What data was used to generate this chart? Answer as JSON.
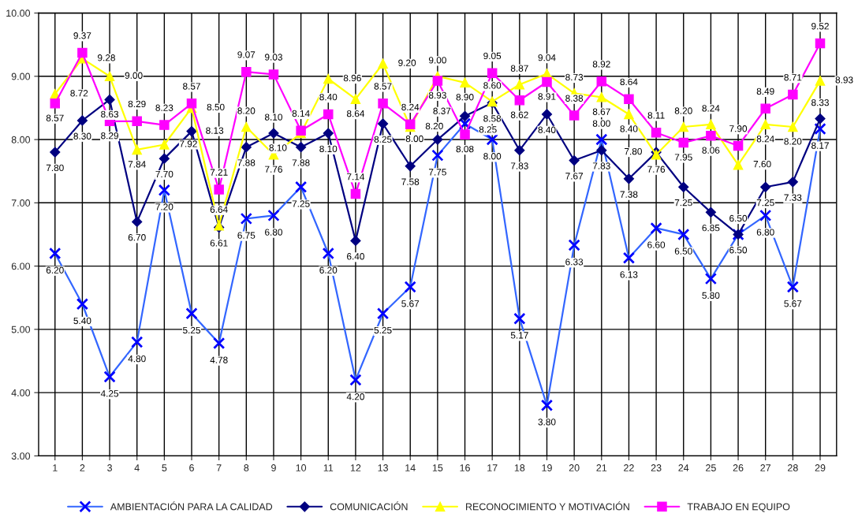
{
  "chart_data": {
    "type": "line",
    "categories": [
      "1",
      "2",
      "3",
      "4",
      "5",
      "6",
      "7",
      "8",
      "9",
      "10",
      "11",
      "12",
      "13",
      "14",
      "15",
      "16",
      "17",
      "18",
      "19",
      "20",
      "21",
      "22",
      "23",
      "24",
      "25",
      "26",
      "27",
      "28",
      "29"
    ],
    "series": [
      {
        "name": "AMBIENTACIÓN PARA LA CALIDAD",
        "color": "#3366ff",
        "marker": "cross",
        "values": [
          6.2,
          5.4,
          4.25,
          4.8,
          7.2,
          5.25,
          4.78,
          6.75,
          6.8,
          7.25,
          6.2,
          4.2,
          5.25,
          5.67,
          7.75,
          8.25,
          8.0,
          5.17,
          3.8,
          6.33,
          8.0,
          6.13,
          6.6,
          6.5,
          5.8,
          6.5,
          6.8,
          5.67,
          8.17
        ],
        "value_labels": [
          "6.20",
          "5.40",
          "4.25",
          "4.80",
          "7.20",
          "5.25",
          "4.78",
          "6.75",
          "6.80",
          "7.25",
          "6.20",
          "4.20",
          "5.25",
          "5.67",
          "7.75",
          "8.25",
          "8.00",
          "5.17",
          "3.80",
          "6.33",
          "8.00",
          "6.13",
          "6.60",
          "6.50",
          "5.80",
          "6.50",
          "6.80",
          "5.67",
          "8.17"
        ]
      },
      {
        "name": "COMUNICACIÓN",
        "color": "#000080",
        "marker": "diamond",
        "values": [
          7.8,
          8.3,
          8.63,
          6.7,
          7.7,
          8.13,
          6.61,
          7.88,
          8.1,
          7.88,
          8.1,
          6.4,
          8.25,
          7.58,
          8.0,
          8.37,
          8.58,
          7.83,
          8.4,
          7.67,
          7.83,
          7.38,
          7.8,
          7.25,
          6.85,
          6.5,
          7.25,
          7.33,
          8.33
        ],
        "value_labels": [
          "7.80",
          "8.30",
          "8.63",
          "6.70",
          "7.70",
          "8.13",
          "6.61",
          "7.88",
          "8.10",
          "7.88",
          "8.10",
          "6.40",
          "8.25",
          "7.58",
          "8.00",
          "8.37",
          "8.58",
          "7.83",
          "8.40",
          "7.67",
          "7.83",
          "7.38",
          "7.80",
          "7.25",
          "6.85",
          "6.50",
          "7.25",
          "7.33",
          "8.33"
        ]
      },
      {
        "name": "RECONOCIMIENTO Y MOTIVACIÓN",
        "color": "#ffff00",
        "marker": "triangle",
        "values": [
          8.72,
          9.28,
          9.0,
          7.84,
          7.92,
          8.5,
          6.64,
          8.2,
          7.76,
          8.1,
          8.96,
          8.64,
          9.2,
          8.2,
          9.0,
          8.9,
          8.6,
          8.87,
          9.04,
          8.73,
          8.67,
          8.4,
          7.76,
          8.2,
          8.24,
          7.6,
          8.24,
          8.2,
          8.93
        ],
        "value_labels": [
          "8.72",
          "9.28",
          "9.00",
          "7.84",
          "7.92",
          "8.50",
          "6.64",
          "8.20",
          "7.76",
          "8.10",
          "8.96",
          "8.64",
          "9.20",
          "8.20",
          "9.00",
          "8.90",
          "8.60",
          "8.87",
          "9.04",
          "8.73",
          "8.67",
          "8.40",
          "7.76",
          "8.20",
          "8.24",
          "7.60",
          "8.24",
          "8.20",
          "8.93"
        ]
      },
      {
        "name": "TRABAJO EN EQUIPO",
        "color": "#ff00ff",
        "marker": "square",
        "values": [
          8.57,
          9.37,
          8.29,
          8.29,
          8.23,
          8.57,
          7.21,
          9.07,
          9.03,
          8.14,
          8.4,
          7.14,
          8.57,
          8.24,
          8.93,
          8.08,
          9.05,
          8.62,
          8.91,
          8.38,
          8.92,
          8.64,
          8.11,
          7.95,
          8.06,
          7.9,
          8.49,
          8.71,
          9.52
        ],
        "value_labels": [
          "8.57",
          "9.37",
          "8.29",
          "8.29",
          "8.23",
          "8.57",
          "7.21",
          "9.07",
          "9.03",
          "8.14",
          "8.40",
          "7.14",
          "8.57",
          "8.24",
          "8.93",
          "8.08",
          "9.05",
          "8.62",
          "8.91",
          "8.38",
          "8.92",
          "8.64",
          "8.11",
          "7.95",
          "8.06",
          "7.90",
          "8.49",
          "8.71",
          "9.52"
        ]
      }
    ],
    "ylim": [
      3,
      10
    ],
    "yticks": [
      {
        "value": 3,
        "label": "3.00"
      },
      {
        "value": 4,
        "label": "4.00"
      },
      {
        "value": 5,
        "label": "5.00"
      },
      {
        "value": 6,
        "label": "6.00"
      },
      {
        "value": 7,
        "label": "7.00"
      },
      {
        "value": 8,
        "label": "8.00"
      },
      {
        "value": 9,
        "label": "9.00"
      },
      {
        "value": 10,
        "label": "10.00"
      }
    ],
    "grid": true,
    "legend": "bottom"
  }
}
